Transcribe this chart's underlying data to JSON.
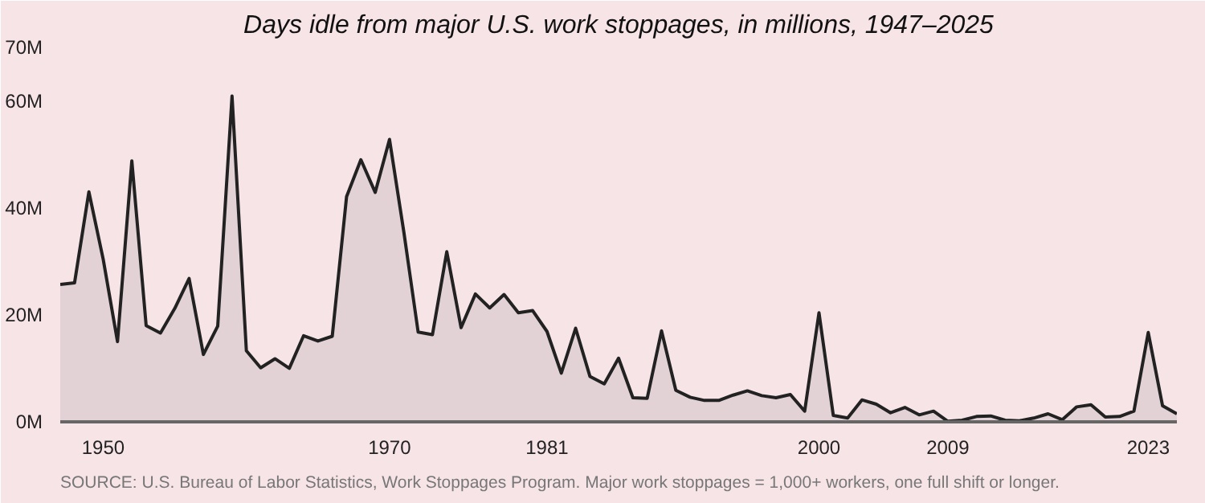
{
  "chart_data": {
    "type": "area",
    "title": "Days idle from major U.S. work stoppages, in millions, 1947–2025",
    "x": [
      1947,
      1948,
      1949,
      1950,
      1951,
      1952,
      1953,
      1954,
      1955,
      1956,
      1957,
      1958,
      1959,
      1960,
      1961,
      1962,
      1963,
      1964,
      1965,
      1966,
      1967,
      1968,
      1969,
      1970,
      1971,
      1972,
      1973,
      1974,
      1975,
      1976,
      1977,
      1978,
      1979,
      1980,
      1981,
      1982,
      1983,
      1984,
      1985,
      1986,
      1987,
      1988,
      1989,
      1990,
      1991,
      1992,
      1993,
      1994,
      1995,
      1996,
      1997,
      1998,
      1999,
      2000,
      2001,
      2002,
      2003,
      2004,
      2005,
      2006,
      2007,
      2008,
      2009,
      2010,
      2011,
      2012,
      2013,
      2014,
      2015,
      2016,
      2017,
      2018,
      2019,
      2020,
      2021,
      2022,
      2023,
      2024,
      2025
    ],
    "series": [
      {
        "color": "#222222",
        "values": [
          25.7,
          26,
          43,
          30.4,
          15,
          48.8,
          18,
          16.6,
          21.2,
          26.8,
          12.6,
          17.9,
          60.9,
          13.3,
          10.1,
          11.8,
          10,
          16.1,
          15.1,
          16,
          42.1,
          49,
          42.9,
          52.8,
          35.5,
          16.8,
          16.3,
          31.8,
          17.6,
          23.9,
          21.3,
          23.8,
          20.4,
          20.8,
          16.9,
          9.1,
          17.5,
          8.5,
          7.1,
          11.9,
          4.5,
          4.4,
          17,
          5.9,
          4.6,
          4,
          4,
          5,
          5.8,
          4.9,
          4.5,
          5.1,
          2,
          20.4,
          1.2,
          0.7,
          4.1,
          3.3,
          1.7,
          2.7,
          1.3,
          2,
          0.1,
          0.3,
          1,
          1.1,
          0.3,
          0.2,
          0.7,
          1.5,
          0.4,
          2.8,
          3.2,
          0.9,
          1,
          2,
          16.7,
          3,
          1.5
        ]
      }
    ],
    "xlim": [
      1947,
      2025
    ],
    "ylim": [
      0,
      70
    ],
    "xticks": [
      1950,
      1970,
      1981,
      2000,
      2009,
      2023
    ],
    "yticks": [
      {
        "value": 0,
        "label": "0M"
      },
      {
        "value": 20,
        "label": "20M"
      },
      {
        "value": 40,
        "label": "40M"
      },
      {
        "value": 60,
        "label": "60M"
      },
      {
        "value": 70,
        "label": "70M"
      }
    ],
    "grid": false,
    "annotations": [
      "SOURCE: U.S. Bureau of Labor Statistics, Work Stoppages Program. Major work stoppages = 1,000+ workers, one full shift or longer."
    ]
  }
}
